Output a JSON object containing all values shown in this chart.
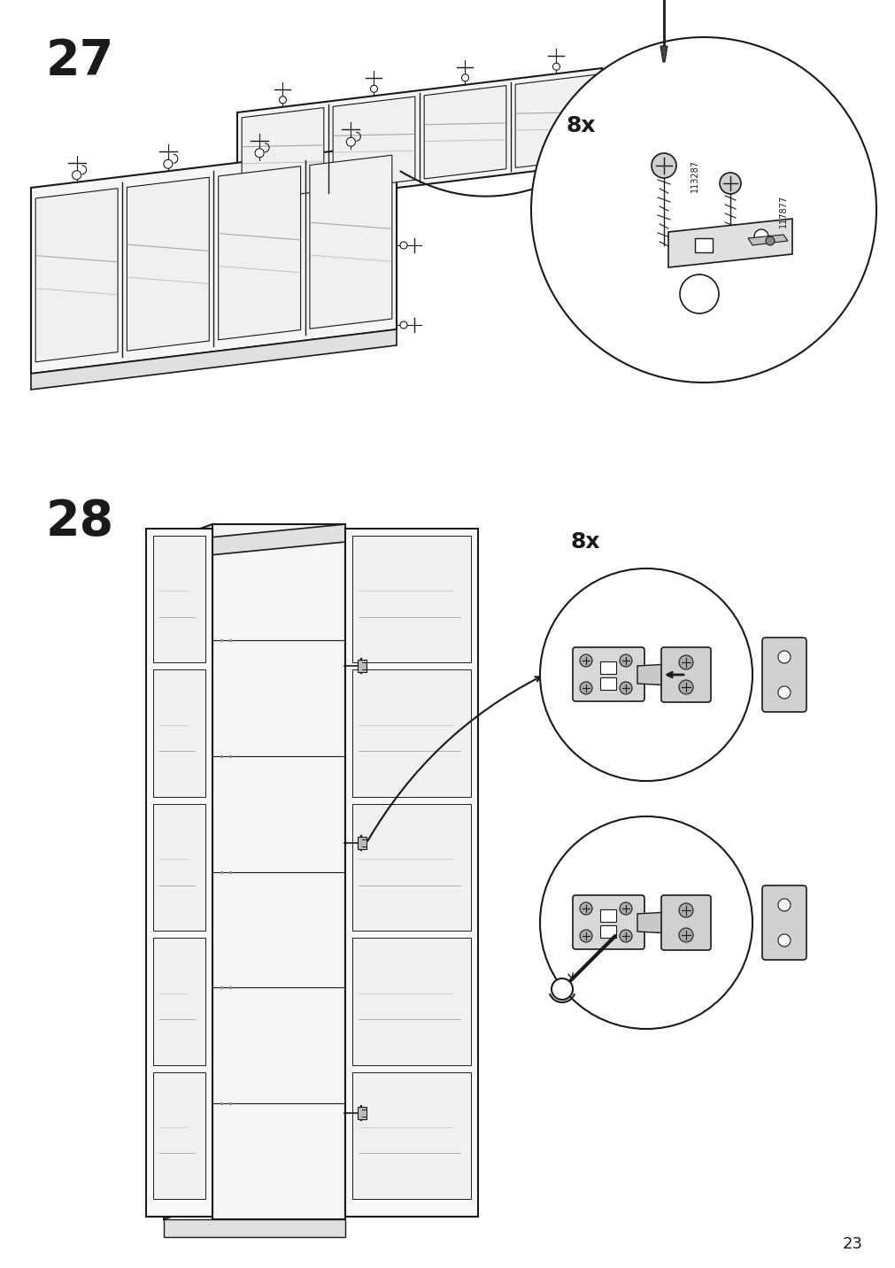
{
  "background_color": "#ffffff",
  "page_number": "23",
  "line_color": "#1a1a1a",
  "mid_gray": "#888888",
  "light_gray": "#dddddd",
  "dark_gray": "#444444",
  "panel_fill": "#f8f8f8",
  "glass_fill": "#f0f0f0",
  "part_id_1": "113287",
  "part_id_2": "117877",
  "qty_8x": "8x"
}
